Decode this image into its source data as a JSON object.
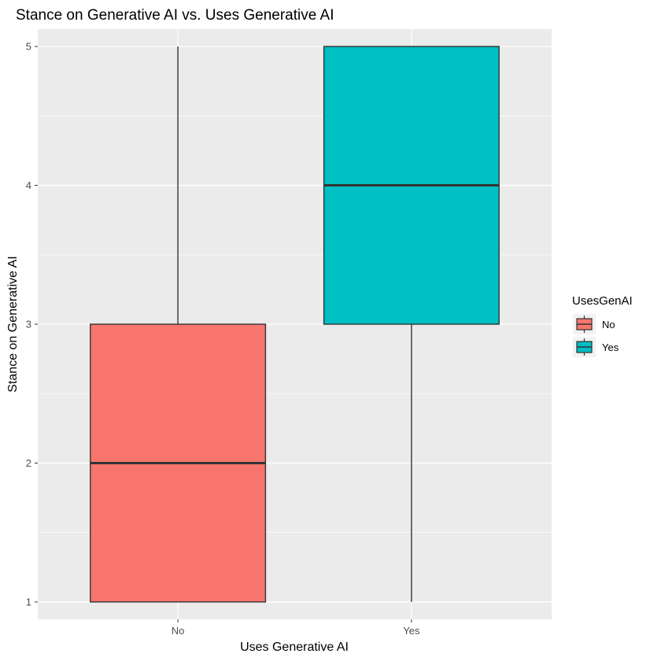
{
  "chart_data": {
    "type": "box",
    "title": "Stance on Generative AI vs. Uses Generative AI",
    "xlabel": "Uses Generative AI",
    "ylabel": "Stance on Generative AI",
    "categories": [
      "No",
      "Yes"
    ],
    "ylim": [
      0.875,
      5.125
    ],
    "yticks": [
      1,
      2,
      3,
      4,
      5
    ],
    "grid": true,
    "legend": {
      "title": "UsesGenAI",
      "position": "right",
      "entries": [
        "No",
        "Yes"
      ]
    },
    "series": [
      {
        "name": "No",
        "min": 1,
        "q1": 1,
        "median": 2,
        "q3": 3,
        "max": 5,
        "color": "#F8766D"
      },
      {
        "name": "Yes",
        "min": 1,
        "q1": 3,
        "median": 4,
        "q3": 5,
        "max": 5,
        "color": "#00BFC4"
      }
    ]
  }
}
